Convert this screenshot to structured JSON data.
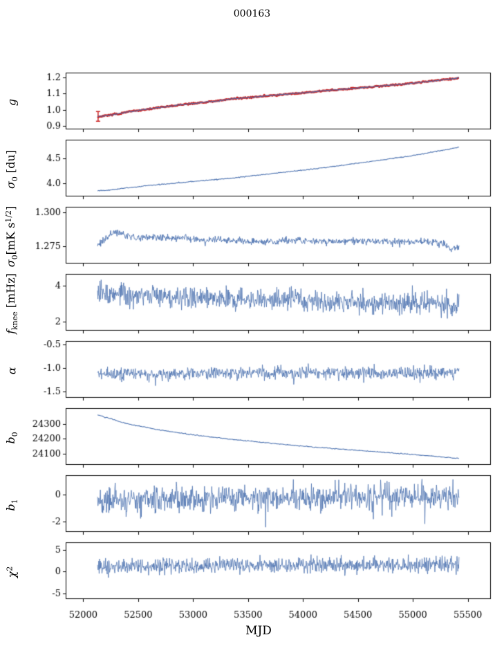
{
  "chart_data": {
    "type": "line",
    "title": "000163",
    "xlabel": "MJD",
    "axis": {
      "xlim": [
        51840,
        55710
      ],
      "xticks": [
        52000,
        52500,
        53000,
        53500,
        54000,
        54500,
        55000,
        55500
      ]
    },
    "colors": {
      "line": "#4c72b0",
      "red": "#cc2222",
      "axis": "#000000"
    },
    "panels": [
      {
        "name": "g",
        "ylabel": [
          {
            "t": "g",
            "s": "i"
          }
        ],
        "ylim": [
          0.88,
          1.23
        ],
        "yticks": [
          0.9,
          1.0,
          1.1,
          1.2
        ],
        "ytick_decimals": 1,
        "series": [
          {
            "name": "g-red",
            "color": "#cc2222",
            "lw": 3,
            "n": 400,
            "seed": 101,
            "noise": 0.0022,
            "trend": [
              [
                52130,
                0.96
              ],
              [
                52180,
                0.962
              ],
              [
                52250,
                0.969
              ],
              [
                52350,
                0.981
              ],
              [
                52500,
                0.997
              ],
              [
                52650,
                1.011
              ],
              [
                52800,
                1.024
              ],
              [
                52950,
                1.036
              ],
              [
                53100,
                1.047
              ],
              [
                53250,
                1.057
              ],
              [
                53330,
                1.068
              ],
              [
                53500,
                1.076
              ],
              [
                53700,
                1.088
              ],
              [
                53900,
                1.1
              ],
              [
                54100,
                1.112
              ],
              [
                54300,
                1.124
              ],
              [
                54500,
                1.135
              ],
              [
                54700,
                1.147
              ],
              [
                54900,
                1.158
              ],
              [
                55050,
                1.168
              ],
              [
                55200,
                1.18
              ],
              [
                55320,
                1.189
              ],
              [
                55420,
                1.196
              ]
            ],
            "errorbars": [
              {
                "x": 52135,
                "y": 0.96,
                "yerr": 0.03
              }
            ]
          },
          {
            "name": "g-blue",
            "color": "#4c72b0",
            "lw": 1.1,
            "n": 400,
            "seed": 102,
            "noise": 0.0015,
            "trend": [
              [
                52130,
                0.96
              ],
              [
                52180,
                0.962
              ],
              [
                52250,
                0.969
              ],
              [
                52350,
                0.981
              ],
              [
                52500,
                0.997
              ],
              [
                52650,
                1.011
              ],
              [
                52800,
                1.024
              ],
              [
                52950,
                1.036
              ],
              [
                53100,
                1.047
              ],
              [
                53250,
                1.057
              ],
              [
                53330,
                1.068
              ],
              [
                53500,
                1.076
              ],
              [
                53700,
                1.088
              ],
              [
                53900,
                1.1
              ],
              [
                54100,
                1.112
              ],
              [
                54300,
                1.124
              ],
              [
                54500,
                1.135
              ],
              [
                54700,
                1.147
              ],
              [
                54900,
                1.158
              ],
              [
                55050,
                1.168
              ],
              [
                55200,
                1.18
              ],
              [
                55320,
                1.189
              ],
              [
                55420,
                1.196
              ]
            ]
          }
        ]
      },
      {
        "name": "sigma0_du",
        "ylabel": [
          {
            "t": "σ",
            "s": "i"
          },
          {
            "t": "0",
            "s": "sub"
          },
          {
            "t": " [du]",
            "s": ""
          }
        ],
        "ylim": [
          3.74,
          4.88
        ],
        "yticks": [
          4.0,
          4.5
        ],
        "ytick_decimals": 1,
        "series": [
          {
            "name": "sigma0-du",
            "color": "#4c72b0",
            "lw": 1.1,
            "n": 500,
            "seed": 201,
            "noise": 0.0045,
            "trend": [
              [
                52130,
                3.855
              ],
              [
                52200,
                3.86
              ],
              [
                52300,
                3.885
              ],
              [
                52450,
                3.925
              ],
              [
                52600,
                3.96
              ],
              [
                52800,
                4.0
              ],
              [
                53000,
                4.04
              ],
              [
                53200,
                4.08
              ],
              [
                53400,
                4.12
              ],
              [
                53600,
                4.17
              ],
              [
                53800,
                4.22
              ],
              [
                54000,
                4.27
              ],
              [
                54200,
                4.32
              ],
              [
                54400,
                4.38
              ],
              [
                54600,
                4.44
              ],
              [
                54800,
                4.5
              ],
              [
                55000,
                4.56
              ],
              [
                55150,
                4.62
              ],
              [
                55300,
                4.68
              ],
              [
                55420,
                4.73
              ]
            ]
          }
        ]
      },
      {
        "name": "sigma0_mK",
        "ylabel": [
          {
            "t": "σ",
            "s": "i"
          },
          {
            "t": "0",
            "s": "sub"
          },
          {
            "t": "[mK s",
            "s": ""
          },
          {
            "t": "1/2",
            "s": "sup"
          },
          {
            "t": "]",
            "s": ""
          }
        ],
        "ylim": [
          1.262,
          1.304
        ],
        "yticks": [
          1.275,
          1.3
        ],
        "ytick_decimals": 3,
        "series": [
          {
            "name": "sigma0-mK",
            "color": "#4c72b0",
            "lw": 0.9,
            "n": 800,
            "seed": 301,
            "noise": 0.0013,
            "trend": [
              [
                52130,
                1.275
              ],
              [
                52170,
                1.278
              ],
              [
                52220,
                1.282
              ],
              [
                52300,
                1.286
              ],
              [
                52380,
                1.2825
              ],
              [
                52500,
                1.281
              ],
              [
                52700,
                1.2815
              ],
              [
                52900,
                1.2805
              ],
              [
                53100,
                1.279
              ],
              [
                53300,
                1.28
              ],
              [
                53500,
                1.2785
              ],
              [
                53700,
                1.278
              ],
              [
                53900,
                1.279
              ],
              [
                54100,
                1.2785
              ],
              [
                54300,
                1.278
              ],
              [
                54500,
                1.279
              ],
              [
                54700,
                1.2785
              ],
              [
                54900,
                1.278
              ],
              [
                55100,
                1.2785
              ],
              [
                55250,
                1.2775
              ],
              [
                55350,
                1.273
              ],
              [
                55420,
                1.2745
              ]
            ]
          }
        ]
      },
      {
        "name": "fknee",
        "ylabel": [
          {
            "t": "f",
            "s": "i"
          },
          {
            "t": "knee",
            "s": "sub"
          },
          {
            "t": " [mHz]",
            "s": ""
          }
        ],
        "ylim": [
          1.5,
          4.65
        ],
        "yticks": [
          2,
          4
        ],
        "ytick_decimals": 0,
        "series": [
          {
            "name": "fknee",
            "color": "#4c72b0",
            "lw": 0.8,
            "n": 900,
            "seed": 401,
            "noise": 0.3,
            "trend": [
              [
                52130,
                3.7
              ],
              [
                52300,
                3.55
              ],
              [
                52600,
                3.45
              ],
              [
                53000,
                3.35
              ],
              [
                53500,
                3.28
              ],
              [
                54000,
                3.15
              ],
              [
                54500,
                3.05
              ],
              [
                55000,
                3.0
              ],
              [
                55420,
                2.95
              ]
            ]
          }
        ]
      },
      {
        "name": "alpha",
        "ylabel": [
          {
            "t": "α",
            "s": "i"
          }
        ],
        "ylim": [
          -1.63,
          -0.42
        ],
        "yticks": [
          -0.5,
          -1.0,
          -1.5
        ],
        "ytick_decimals": 1,
        "series": [
          {
            "name": "alpha",
            "color": "#4c72b0",
            "lw": 0.8,
            "n": 900,
            "seed": 501,
            "noise": 0.068,
            "trend": [
              [
                52130,
                -1.11
              ],
              [
                53500,
                -1.1
              ],
              [
                55420,
                -1.09
              ]
            ]
          }
        ]
      },
      {
        "name": "b0",
        "ylabel": [
          {
            "t": "b",
            "s": "i"
          },
          {
            "t": "0",
            "s": "sub"
          }
        ],
        "ylim": [
          24025,
          24405
        ],
        "yticks": [
          24100,
          24200,
          24300
        ],
        "ytick_decimals": 0,
        "series": [
          {
            "name": "b0",
            "color": "#4c72b0",
            "lw": 1.1,
            "n": 400,
            "seed": 601,
            "noise": 1.5,
            "trend": [
              [
                52130,
                24360
              ],
              [
                52400,
                24300
              ],
              [
                52700,
                24258
              ],
              [
                53000,
                24226
              ],
              [
                53300,
                24200
              ],
              [
                53700,
                24170
              ],
              [
                54100,
                24144
              ],
              [
                54500,
                24122
              ],
              [
                54900,
                24100
              ],
              [
                55200,
                24082
              ],
              [
                55420,
                24068
              ]
            ]
          }
        ]
      },
      {
        "name": "b1",
        "ylabel": [
          {
            "t": "b",
            "s": "i"
          },
          {
            "t": "1",
            "s": "sub"
          }
        ],
        "ylim": [
          -2.75,
          1.45
        ],
        "yticks": [
          0,
          -2
        ],
        "ytick_decimals": 0,
        "series": [
          {
            "name": "b1",
            "color": "#4c72b0",
            "lw": 0.8,
            "n": 900,
            "seed": 701,
            "noise": 0.46,
            "trend": [
              [
                52130,
                -0.42
              ],
              [
                52600,
                -0.35
              ],
              [
                53400,
                -0.25
              ],
              [
                54200,
                -0.18
              ],
              [
                55420,
                -0.12
              ]
            ],
            "outliers": [
              [
                53660,
                -2.4
              ],
              [
                55110,
                -2.15
              ],
              [
                52520,
                -1.75
              ],
              [
                54640,
                -1.8
              ]
            ]
          }
        ]
      },
      {
        "name": "chi2",
        "ylabel": [
          {
            "t": "χ",
            "s": "i"
          },
          {
            "t": "2",
            "s": "sup"
          }
        ],
        "ylim": [
          -6.3,
          6.7
        ],
        "yticks": [
          -5,
          0,
          5
        ],
        "ytick_decimals": 0,
        "series": [
          {
            "name": "chi2",
            "color": "#4c72b0",
            "lw": 0.8,
            "n": 900,
            "seed": 801,
            "noise": 0.9,
            "trend": [
              [
                52130,
                1.1
              ],
              [
                53000,
                1.4
              ],
              [
                54200,
                1.5
              ],
              [
                55420,
                1.6
              ]
            ]
          }
        ]
      }
    ]
  }
}
